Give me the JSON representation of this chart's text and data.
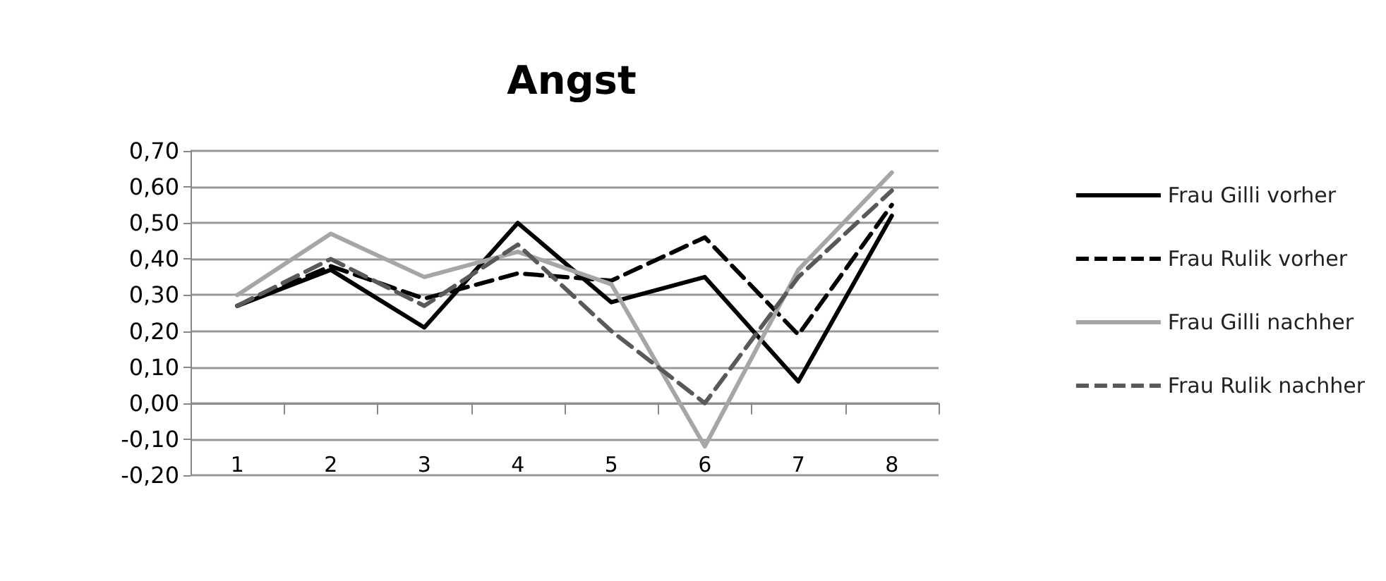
{
  "chart_data": {
    "type": "line",
    "title": "Angst",
    "categories": [
      "1",
      "2",
      "3",
      "4",
      "5",
      "6",
      "7",
      "8"
    ],
    "series": [
      {
        "name": "Frau Gilli vorher",
        "color": "#000000",
        "line_style": "solid",
        "values": [
          0.27,
          0.37,
          0.21,
          0.5,
          0.28,
          0.35,
          0.06,
          0.52
        ]
      },
      {
        "name": "Frau Rulik vorher",
        "color": "#000000",
        "line_style": "dashed",
        "values": [
          0.27,
          0.38,
          0.29,
          0.36,
          0.34,
          0.46,
          0.19,
          0.55
        ]
      },
      {
        "name": "Frau Gilli nachher",
        "color": "#a6a6a6",
        "line_style": "solid",
        "values": [
          0.3,
          0.47,
          0.35,
          0.42,
          0.33,
          -0.12,
          0.37,
          0.64
        ]
      },
      {
        "name": "Frau Rulik nachher",
        "color": "#595959",
        "line_style": "dashed",
        "values": [
          0.27,
          0.4,
          0.27,
          0.44,
          0.2,
          0.0,
          0.35,
          0.59
        ]
      }
    ],
    "ylim": [
      -0.2,
      0.7
    ],
    "yticks": [
      {
        "value": -0.2,
        "label": "-0,20"
      },
      {
        "value": -0.1,
        "label": "-0,10"
      },
      {
        "value": 0,
        "label": "0,00"
      },
      {
        "value": 0.1,
        "label": "0,10"
      },
      {
        "value": 0.2,
        "label": "0,20"
      },
      {
        "value": 0.3,
        "label": "0,30"
      },
      {
        "value": 0.4,
        "label": "0,40"
      },
      {
        "value": 0.5,
        "label": "0,50"
      },
      {
        "value": 0.6,
        "label": "0,60"
      },
      {
        "value": 0.7,
        "label": "0,70"
      }
    ],
    "grid": "y",
    "legend": "right",
    "marker": "none"
  }
}
